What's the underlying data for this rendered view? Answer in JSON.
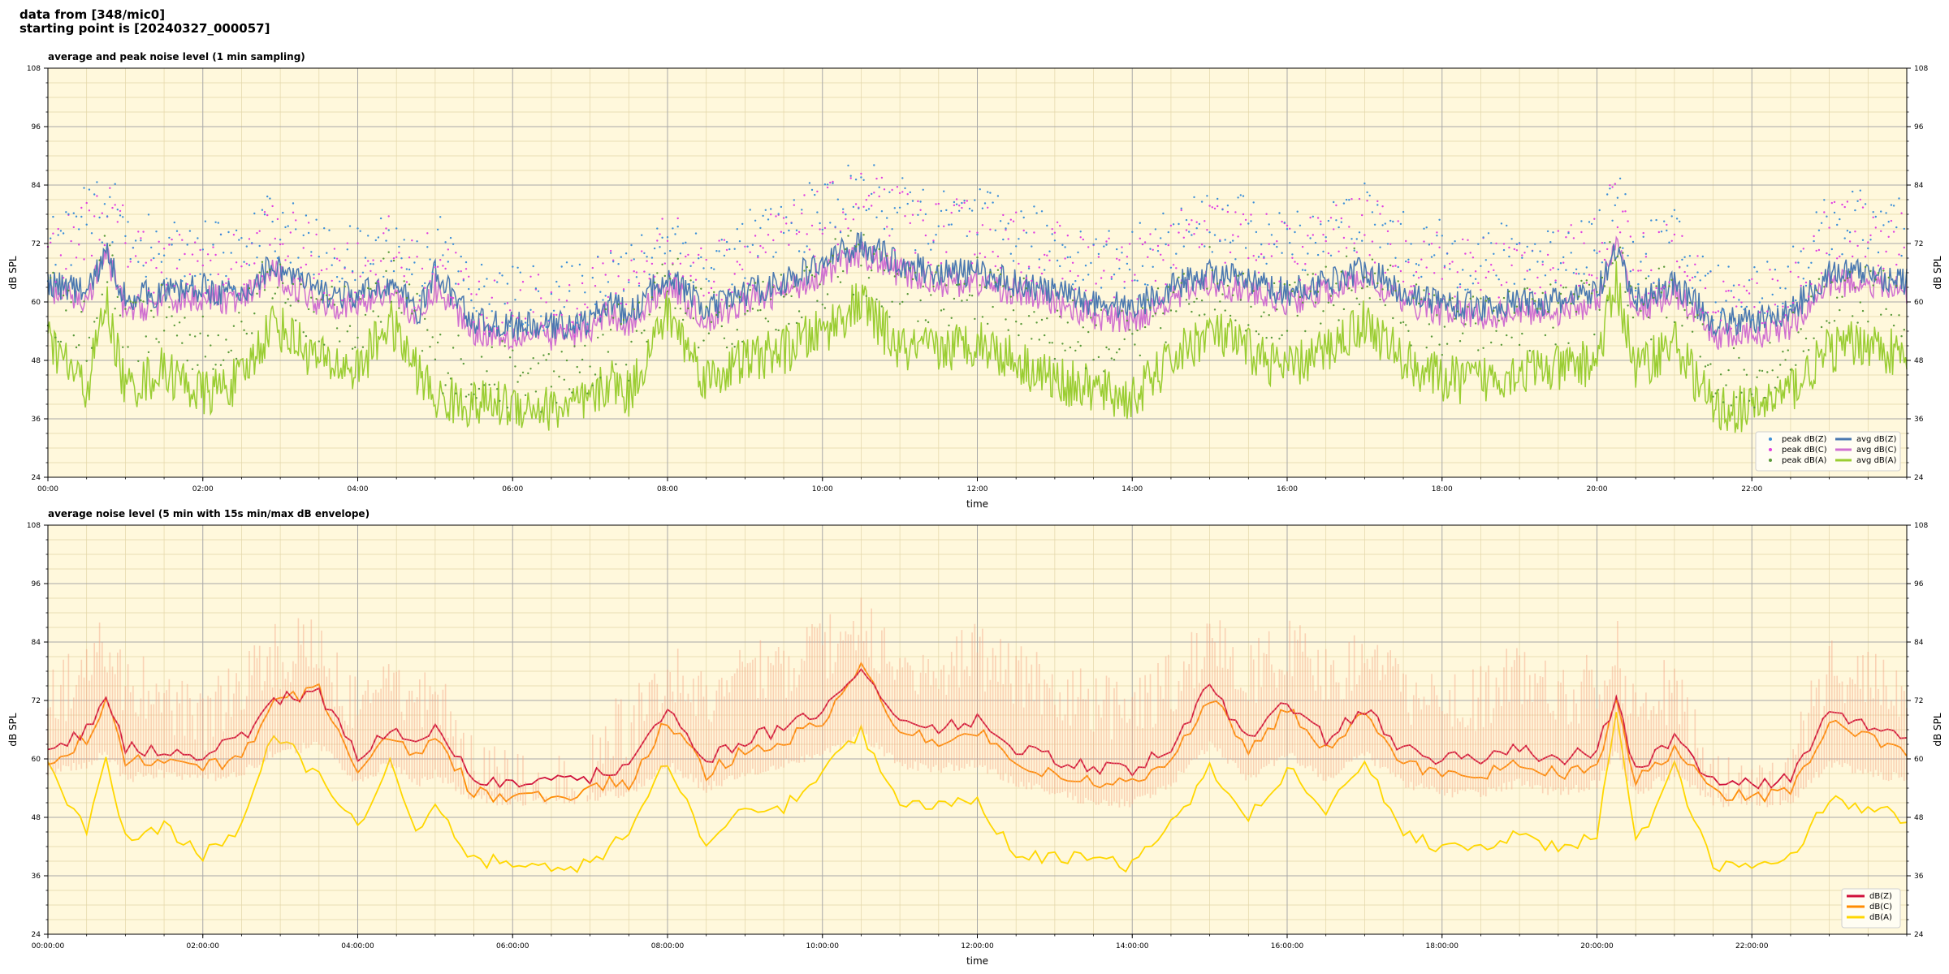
{
  "header": {
    "line1": "data from [348/mic0]",
    "line2": "starting point is [20240327_000057]"
  },
  "colors": {
    "plot_bg": "#fff8dc",
    "peak_Z": "#3c8fd8",
    "peak_C": "#e040e0",
    "peak_A": "#5a9a3a",
    "avg_Z": "#4a78b0",
    "avg_C": "#d070d0",
    "avg_A": "#9acd32",
    "dBZ": "#d0103a",
    "dBC": "#ff8c00",
    "dBA": "#ffd700",
    "envelope": "#f4a582"
  },
  "chart_data": [
    {
      "type": "line",
      "title": "average and peak noise level (1 min sampling)",
      "xlabel": "time",
      "ylabel": "dB SPL",
      "ylim": [
        24,
        108
      ],
      "xlim_hours": [
        0,
        24
      ],
      "yticks": [
        "24",
        "36",
        "48",
        "60",
        "72",
        "84",
        "96",
        "108"
      ],
      "xticks": [
        "00:00",
        "02:00",
        "04:00",
        "06:00",
        "08:00",
        "10:00",
        "12:00",
        "14:00",
        "16:00",
        "18:00",
        "20:00",
        "22:00"
      ],
      "grid": true,
      "legend_position": "bottom-right",
      "legend": [
        "peak dB(Z)",
        "peak dB(C)",
        "peak dB(A)",
        "avg dB(Z)",
        "avg dB(C)",
        "avg dB(A)"
      ],
      "x_hours": [
        0,
        0.5,
        0.75,
        1,
        1.5,
        2,
        2.5,
        2.9,
        3.5,
        4,
        4.4,
        4.8,
        5,
        5.5,
        6,
        6.5,
        7,
        7.25,
        7.5,
        8,
        8.5,
        9,
        9.5,
        10,
        10.5,
        11,
        11.5,
        12,
        12.5,
        13,
        13.5,
        14,
        14.5,
        15,
        15.5,
        16,
        16.5,
        17,
        17.5,
        18,
        18.5,
        19,
        19.5,
        20,
        20.25,
        20.5,
        21,
        21.5,
        22,
        22.5,
        23,
        23.5,
        24
      ],
      "series": [
        {
          "name": "avg dB(Z)",
          "values": [
            64,
            62,
            70,
            61,
            62,
            63,
            61,
            68,
            62,
            61,
            64,
            58,
            66,
            56,
            55,
            55,
            56,
            60,
            57,
            66,
            58,
            62,
            64,
            68,
            72,
            68,
            66,
            66,
            64,
            62,
            60,
            59,
            63,
            66,
            64,
            62,
            64,
            67,
            62,
            60,
            59,
            60,
            60,
            62,
            70,
            60,
            64,
            56,
            56,
            58,
            66,
            66,
            64
          ]
        },
        {
          "name": "avg dB(C)",
          "values": [
            62,
            60,
            70,
            58,
            60,
            61,
            60,
            66,
            60,
            59,
            63,
            56,
            63,
            54,
            53,
            53,
            54,
            58,
            55,
            64,
            56,
            60,
            62,
            66,
            70,
            66,
            64,
            64,
            62,
            60,
            57,
            56,
            61,
            64,
            62,
            60,
            62,
            65,
            60,
            58,
            57,
            58,
            58,
            60,
            72,
            58,
            62,
            53,
            53,
            55,
            64,
            64,
            62
          ]
        },
        {
          "name": "avg dB(A)",
          "values": [
            52,
            42,
            60,
            42,
            46,
            41,
            44,
            56,
            48,
            46,
            56,
            45,
            40,
            39,
            39,
            38,
            39,
            44,
            41,
            58,
            44,
            48,
            50,
            54,
            60,
            50,
            50,
            52,
            48,
            44,
            42,
            40,
            48,
            54,
            50,
            46,
            50,
            56,
            48,
            44,
            44,
            46,
            46,
            48,
            64,
            46,
            52,
            38,
            38,
            42,
            50,
            52,
            48
          ]
        },
        {
          "name": "peak dB(Z)",
          "values": [
            68,
            74,
            77,
            72,
            66,
            68,
            66,
            74,
            67,
            66,
            70,
            64,
            70,
            59,
            58,
            58,
            59,
            66,
            62,
            72,
            64,
            69,
            72,
            76,
            80,
            76,
            73,
            74,
            71,
            69,
            66,
            66,
            70,
            74,
            72,
            69,
            72,
            75,
            69,
            67,
            66,
            67,
            67,
            70,
            78,
            66,
            70,
            59,
            59,
            62,
            73,
            74,
            71
          ]
        },
        {
          "name": "peak dB(C)",
          "values": [
            66,
            72,
            76,
            70,
            64,
            66,
            64,
            72,
            65,
            64,
            68,
            62,
            68,
            57,
            56,
            56,
            57,
            64,
            60,
            70,
            62,
            67,
            70,
            74,
            78,
            74,
            71,
            72,
            69,
            67,
            64,
            64,
            68,
            72,
            70,
            67,
            70,
            73,
            67,
            65,
            64,
            65,
            65,
            68,
            80,
            64,
            68,
            57,
            57,
            60,
            71,
            72,
            69
          ]
        },
        {
          "name": "peak dB(A)",
          "values": [
            58,
            50,
            66,
            50,
            54,
            48,
            52,
            62,
            55,
            53,
            62,
            52,
            46,
            43,
            42,
            41,
            43,
            52,
            48,
            64,
            52,
            56,
            58,
            62,
            66,
            58,
            58,
            60,
            56,
            52,
            50,
            48,
            56,
            62,
            58,
            54,
            58,
            63,
            56,
            52,
            52,
            54,
            54,
            56,
            70,
            54,
            60,
            42,
            42,
            48,
            58,
            60,
            56
          ]
        }
      ]
    },
    {
      "type": "line",
      "title": "average noise level (5 min with 15s min/max dB envelope)",
      "xlabel": "time",
      "ylabel": "dB SPL",
      "ylim": [
        24,
        108
      ],
      "xlim_hours": [
        0,
        24
      ],
      "yticks": [
        "24",
        "36",
        "48",
        "60",
        "72",
        "84",
        "96",
        "108"
      ],
      "xticks": [
        "00:00:00",
        "02:00:00",
        "04:00:00",
        "06:00:00",
        "08:00:00",
        "10:00:00",
        "12:00:00",
        "14:00:00",
        "16:00:00",
        "18:00:00",
        "20:00:00",
        "22:00:00"
      ],
      "grid": true,
      "legend_position": "bottom-right",
      "legend": [
        "dB(Z)",
        "dB(C)",
        "dB(A)"
      ],
      "x_hours": [
        0,
        0.5,
        0.75,
        1,
        1.5,
        2,
        2.5,
        2.9,
        3.5,
        4,
        4.4,
        4.8,
        5,
        5.5,
        6,
        6.5,
        7,
        7.25,
        7.5,
        8,
        8.5,
        9,
        9.5,
        10,
        10.5,
        11,
        11.5,
        12,
        12.5,
        13,
        13.5,
        14,
        14.5,
        15,
        15.5,
        16,
        16.5,
        17,
        17.5,
        18,
        18.5,
        19,
        19.5,
        20,
        20.25,
        20.5,
        21,
        21.5,
        22,
        22.5,
        23,
        23.5,
        24
      ],
      "series": [
        {
          "name": "dB(Z)",
          "values": [
            62,
            66,
            72,
            62,
            62,
            61,
            64,
            72,
            74,
            60,
            66,
            62,
            66,
            56,
            55,
            55,
            56,
            58,
            58,
            70,
            60,
            64,
            66,
            70,
            78,
            68,
            66,
            68,
            62,
            60,
            58,
            58,
            62,
            75,
            64,
            72,
            64,
            70,
            62,
            60,
            60,
            62,
            60,
            62,
            72,
            58,
            64,
            56,
            55,
            56,
            70,
            66,
            64
          ]
        },
        {
          "name": "dB(C)",
          "values": [
            60,
            64,
            72,
            60,
            60,
            58,
            60,
            72,
            74,
            58,
            64,
            60,
            64,
            53,
            52,
            52,
            53,
            55,
            55,
            68,
            57,
            62,
            64,
            67,
            79,
            66,
            64,
            66,
            59,
            57,
            55,
            55,
            60,
            73,
            62,
            70,
            62,
            69,
            59,
            57,
            57,
            59,
            57,
            59,
            72,
            55,
            62,
            53,
            52,
            53,
            68,
            64,
            62
          ]
        },
        {
          "name": "dB(A)",
          "values": [
            58,
            46,
            60,
            44,
            46,
            40,
            46,
            66,
            56,
            46,
            60,
            44,
            50,
            39,
            39,
            38,
            38,
            42,
            44,
            60,
            42,
            50,
            50,
            58,
            66,
            50,
            50,
            52,
            40,
            40,
            39,
            38,
            46,
            58,
            48,
            58,
            50,
            60,
            44,
            42,
            42,
            44,
            42,
            44,
            70,
            42,
            58,
            38,
            38,
            40,
            52,
            50,
            48
          ]
        },
        {
          "name": "envelope max",
          "values": [
            78,
            86,
            90,
            82,
            80,
            74,
            82,
            88,
            90,
            76,
            84,
            78,
            80,
            64,
            62,
            62,
            64,
            74,
            72,
            86,
            78,
            84,
            86,
            90,
            94,
            88,
            86,
            88,
            84,
            82,
            78,
            76,
            82,
            92,
            84,
            90,
            84,
            88,
            80,
            78,
            80,
            84,
            80,
            82,
            90,
            76,
            82,
            62,
            60,
            66,
            86,
            84,
            80
          ]
        },
        {
          "name": "envelope min",
          "values": [
            56,
            58,
            60,
            55,
            56,
            55,
            56,
            60,
            62,
            54,
            58,
            54,
            56,
            51,
            50,
            50,
            51,
            52,
            52,
            58,
            53,
            56,
            58,
            60,
            64,
            58,
            57,
            58,
            54,
            52,
            50,
            50,
            54,
            62,
            55,
            60,
            55,
            60,
            54,
            52,
            52,
            54,
            52,
            54,
            60,
            52,
            56,
            50,
            50,
            50,
            58,
            56,
            55
          ]
        }
      ]
    }
  ]
}
